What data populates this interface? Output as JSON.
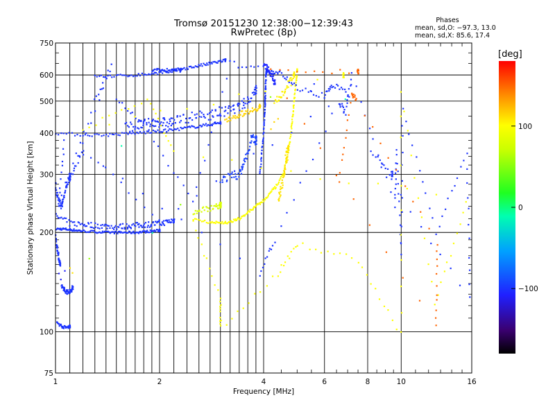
{
  "header": {
    "title_line1": "Tromsø 20151230 12:38:00−12:39:43",
    "title_line2": "RwPretec (8p)"
  },
  "phases": {
    "title": "Phases",
    "line_o": "mean, sd,O: −97.3, 13.0",
    "line_x": "mean, sd,X:  85.6, 17.4"
  },
  "colorbar": {
    "unit": "[deg]",
    "range": [
      -180,
      180
    ],
    "ticks": [
      {
        "value": 100,
        "label": "100"
      },
      {
        "value": 0,
        "label": "0"
      },
      {
        "value": -100,
        "label": "−100"
      }
    ]
  },
  "chart_data": {
    "type": "scatter",
    "xlabel": "Frequency [MHz]",
    "ylabel": "Stationary phase Virtual Height [km]",
    "xscale": "log",
    "yscale": "log",
    "xlim": [
      1,
      16
    ],
    "ylim": [
      75,
      750
    ],
    "xticks": [
      {
        "value": 1,
        "label": "1"
      },
      {
        "value": 2,
        "label": "2"
      },
      {
        "value": 4,
        "label": "4"
      },
      {
        "value": 6,
        "label": "6"
      },
      {
        "value": 8,
        "label": "8"
      },
      {
        "value": 10,
        "label": "10"
      },
      {
        "value": 16,
        "label": "16"
      }
    ],
    "xgrid": [
      1.1,
      1.2,
      1.3,
      1.4,
      1.5,
      1.6,
      1.7,
      1.8,
      1.9,
      2,
      2.2,
      2.4,
      2.6,
      2.8,
      3,
      3.2,
      3.4,
      3.6,
      3.8,
      4,
      6,
      8,
      10
    ],
    "xminor": [
      4.5,
      5,
      5.5,
      6.5,
      7,
      7.5,
      8.5,
      9,
      9.5,
      11,
      12,
      13,
      14,
      15
    ],
    "yticks": [
      {
        "value": 75,
        "label": "75"
      },
      {
        "value": 100,
        "label": "100"
      },
      {
        "value": 200,
        "label": "200"
      },
      {
        "value": 300,
        "label": "300"
      },
      {
        "value": 400,
        "label": "400"
      },
      {
        "value": 500,
        "label": "500"
      },
      {
        "value": 600,
        "label": "600"
      },
      {
        "value": 750,
        "label": "750"
      }
    ],
    "ygrid": [
      100,
      200,
      300,
      400,
      500,
      600
    ],
    "yminor": [
      110,
      120,
      130,
      140,
      150,
      160,
      170,
      180,
      190,
      220,
      240,
      260,
      280,
      320,
      340,
      360,
      380,
      450,
      550,
      650,
      700
    ],
    "grid": true,
    "series": [
      {
        "phase": -100,
        "spread": 0.008,
        "points": [
          [
            1.0,
            205
          ],
          [
            1.05,
            205
          ],
          [
            1.1,
            204
          ],
          [
            1.15,
            203
          ],
          [
            1.2,
            202
          ],
          [
            1.3,
            201
          ],
          [
            1.4,
            200
          ],
          [
            1.5,
            200
          ],
          [
            1.6,
            200
          ],
          [
            1.7,
            200
          ],
          [
            1.8,
            201
          ],
          [
            1.9,
            202
          ],
          [
            2.0,
            203
          ]
        ]
      },
      {
        "phase": -100,
        "spread": 0.02,
        "points": [
          [
            1.0,
            225
          ],
          [
            1.1,
            213
          ],
          [
            1.2,
            212
          ],
          [
            1.3,
            210
          ],
          [
            1.4,
            209
          ],
          [
            1.5,
            208
          ],
          [
            1.6,
            209
          ],
          [
            1.7,
            210
          ],
          [
            1.8,
            211
          ],
          [
            1.9,
            212
          ],
          [
            2.0,
            213
          ],
          [
            2.1,
            215
          ],
          [
            2.2,
            218
          ]
        ]
      },
      {
        "phase": -100,
        "spread": 0.02,
        "points": [
          [
            1.0,
            300
          ],
          [
            1.0,
            270
          ],
          [
            1.02,
            250
          ],
          [
            1.04,
            240
          ],
          [
            1.06,
            258
          ],
          [
            1.08,
            280
          ],
          [
            1.1,
            295
          ]
        ]
      },
      {
        "phase": -100,
        "spread": 0.015,
        "points": [
          [
            1.0,
            195
          ],
          [
            1.01,
            180
          ],
          [
            1.02,
            170
          ],
          [
            1.03,
            160
          ]
        ]
      },
      {
        "phase": -100,
        "spread": 0.015,
        "points": [
          [
            1.04,
            138
          ],
          [
            1.06,
            134
          ],
          [
            1.08,
            132
          ],
          [
            1.1,
            132
          ],
          [
            1.12,
            136
          ]
        ]
      },
      {
        "phase": -110,
        "spread": 0.02,
        "points": [
          [
            1.02,
            150
          ],
          [
            1.04,
            145
          ],
          [
            1.06,
            152
          ]
        ]
      },
      {
        "phase": 110,
        "spread": 0.01,
        "points": [
          [
            1.1,
            155
          ],
          [
            1.12,
            150
          ]
        ]
      },
      {
        "phase": -100,
        "spread": 0.01,
        "points": [
          [
            1.01,
            107
          ],
          [
            1.04,
            104
          ],
          [
            1.07,
            103
          ],
          [
            1.1,
            104
          ]
        ]
      },
      {
        "phase": -100,
        "spread": 0.01,
        "points": [
          [
            1.0,
            400
          ],
          [
            1.2,
            395
          ],
          [
            1.4,
            395
          ],
          [
            1.6,
            398
          ],
          [
            1.8,
            402
          ],
          [
            2.0,
            405
          ],
          [
            2.2,
            410
          ],
          [
            2.4,
            415
          ],
          [
            2.6,
            420
          ],
          [
            2.8,
            425
          ],
          [
            3.0,
            430
          ]
        ]
      },
      {
        "phase": -100,
        "spread": 0.035,
        "points": [
          [
            1.6,
            418
          ],
          [
            1.7,
            420
          ],
          [
            1.8,
            425
          ],
          [
            1.9,
            430
          ],
          [
            2.0,
            432
          ],
          [
            2.1,
            430
          ],
          [
            2.2,
            435
          ],
          [
            2.4,
            445
          ],
          [
            2.6,
            450
          ],
          [
            2.8,
            455
          ],
          [
            3.0,
            460
          ],
          [
            3.2,
            470
          ],
          [
            3.4,
            480
          ],
          [
            3.6,
            500
          ],
          [
            3.8,
            540
          ]
        ]
      },
      {
        "phase": -100,
        "spread": 0.01,
        "points": [
          [
            1.3,
            594
          ],
          [
            1.5,
            596
          ],
          [
            1.7,
            600
          ],
          [
            1.9,
            605
          ],
          [
            2.1,
            615
          ],
          [
            2.3,
            625
          ],
          [
            2.5,
            635
          ],
          [
            2.7,
            645
          ],
          [
            2.9,
            655
          ],
          [
            3.1,
            665
          ]
        ]
      },
      {
        "phase": -100,
        "spread": 0.015,
        "points": [
          [
            1.9,
            615
          ],
          [
            2.0,
            620
          ],
          [
            2.1,
            620
          ],
          [
            2.2,
            618
          ],
          [
            2.3,
            620
          ]
        ]
      },
      {
        "phase": -95,
        "spread": 0.03,
        "points": [
          [
            3.0,
            290
          ],
          [
            3.2,
            295
          ],
          [
            3.4,
            300
          ],
          [
            3.5,
            320
          ],
          [
            3.6,
            350
          ],
          [
            3.7,
            390
          ],
          [
            3.8,
            380
          ]
        ]
      },
      {
        "phase": -100,
        "spread": 0.01,
        "points": [
          [
            3.9,
            300
          ],
          [
            3.95,
            350
          ],
          [
            4.0,
            400
          ],
          [
            4.02,
            450
          ],
          [
            4.04,
            500
          ],
          [
            4.05,
            550
          ],
          [
            4.06,
            600
          ],
          [
            4.08,
            620
          ],
          [
            4.1,
            620
          ]
        ]
      },
      {
        "phase": -105,
        "spread": 0.02,
        "points": [
          [
            4.0,
            640
          ],
          [
            4.1,
            630
          ],
          [
            4.2,
            600
          ],
          [
            4.3,
            570
          ]
        ]
      },
      {
        "phase": 100,
        "spread": 0.01,
        "points": [
          [
            2.5,
            220
          ],
          [
            2.8,
            215
          ],
          [
            3.0,
            214
          ],
          [
            3.2,
            215
          ],
          [
            3.4,
            220
          ],
          [
            3.6,
            230
          ],
          [
            3.8,
            240
          ],
          [
            4.0,
            250
          ],
          [
            4.2,
            265
          ],
          [
            4.4,
            280
          ],
          [
            4.6,
            310
          ],
          [
            4.7,
            350
          ],
          [
            4.8,
            400
          ],
          [
            4.85,
            450
          ],
          [
            4.9,
            500
          ],
          [
            4.95,
            560
          ],
          [
            5.0,
            620
          ]
        ]
      },
      {
        "phase": 110,
        "spread": 0.035,
        "points": [
          [
            4.4,
            250
          ],
          [
            4.5,
            270
          ],
          [
            4.6,
            300
          ],
          [
            4.65,
            330
          ],
          [
            4.7,
            360
          ]
        ]
      },
      {
        "phase": 80,
        "spread": 0.02,
        "points": [
          [
            2.5,
            230
          ],
          [
            2.7,
            235
          ],
          [
            2.9,
            240
          ],
          [
            3.0,
            242
          ]
        ]
      },
      {
        "phase": 115,
        "spread": 0.02,
        "points": [
          [
            3.1,
            440
          ],
          [
            3.3,
            450
          ],
          [
            3.5,
            460
          ],
          [
            3.7,
            470
          ],
          [
            3.9,
            480
          ]
        ]
      },
      {
        "phase": 105,
        "spread": 0.02,
        "points": [
          [
            4.3,
            500
          ],
          [
            4.5,
            520
          ],
          [
            4.7,
            560
          ],
          [
            4.9,
            600
          ]
        ]
      },
      {
        "phase": 115,
        "spread": 0.02,
        "points": [
          [
            4.2,
            410
          ],
          [
            4.3,
            430
          ],
          [
            4.4,
            450
          ]
        ]
      },
      {
        "phase": -100,
        "spread": 0.01,
        "points": [
          [
            5.5,
            540
          ],
          [
            5.6,
            560
          ]
        ]
      },
      {
        "phase": -100,
        "spread": 0.02,
        "points": [
          [
            1.5,
            500
          ],
          [
            1.8,
            430
          ],
          [
            2.5,
            245
          ],
          [
            3.2,
            650
          ],
          [
            4.2,
            620
          ],
          [
            4.5,
            610
          ],
          [
            5.0,
            545
          ],
          [
            6.0,
            520
          ],
          [
            6.3,
            560
          ],
          [
            7.0,
            530
          ],
          [
            2.0,
            220
          ],
          [
            1.2,
            360
          ],
          [
            1.1,
            290
          ],
          [
            1.45,
            640
          ],
          [
            1.3,
            505
          ],
          [
            1.02,
            240
          ],
          [
            1.06,
            380
          ],
          [
            3.9,
            150
          ],
          [
            4.3,
            190
          ],
          [
            6.6,
            500
          ],
          [
            6.9,
            460
          ],
          [
            7.2,
            600
          ],
          [
            9.6,
            240
          ],
          [
            9.7,
            355
          ],
          [
            10.0,
            170
          ],
          [
            10.1,
            475
          ],
          [
            12.6,
            200
          ],
          [
            15.5,
            350
          ],
          [
            15.8,
            125
          ],
          [
            8.2,
            350
          ],
          [
            9.4,
            300
          ]
        ]
      },
      {
        "phase": 100,
        "spread": 0.02,
        "points": [
          [
            2.5,
            215
          ],
          [
            3.0,
            125
          ],
          [
            3.0,
            103
          ],
          [
            4.4,
            150
          ],
          [
            5.0,
            185
          ],
          [
            7.5,
            165
          ],
          [
            10.0,
            98
          ],
          [
            10.0,
            540
          ],
          [
            12.5,
            120
          ],
          [
            15.4,
            250
          ],
          [
            2.2,
            350
          ],
          [
            1.85,
            510
          ],
          [
            1.2,
            410
          ],
          [
            6.8,
            600
          ]
        ]
      },
      {
        "phase": 55,
        "spread": 0.02,
        "points": [
          [
            1.25,
            165
          ],
          [
            2.3,
            240
          ],
          [
            4.2,
            520
          ]
        ]
      },
      {
        "phase": 150,
        "spread": 0.02,
        "points": [
          [
            6.6,
            290
          ],
          [
            7.2,
            520
          ],
          [
            7.4,
            510
          ],
          [
            12.7,
            185
          ],
          [
            12.6,
            104
          ],
          [
            4.2,
            620
          ],
          [
            7.5,
            612
          ]
        ]
      },
      {
        "phase": -10,
        "spread": 0.02,
        "points": [
          [
            1.9,
            200
          ],
          [
            6.9,
            510
          ],
          [
            1.55,
            370
          ]
        ]
      }
    ]
  }
}
